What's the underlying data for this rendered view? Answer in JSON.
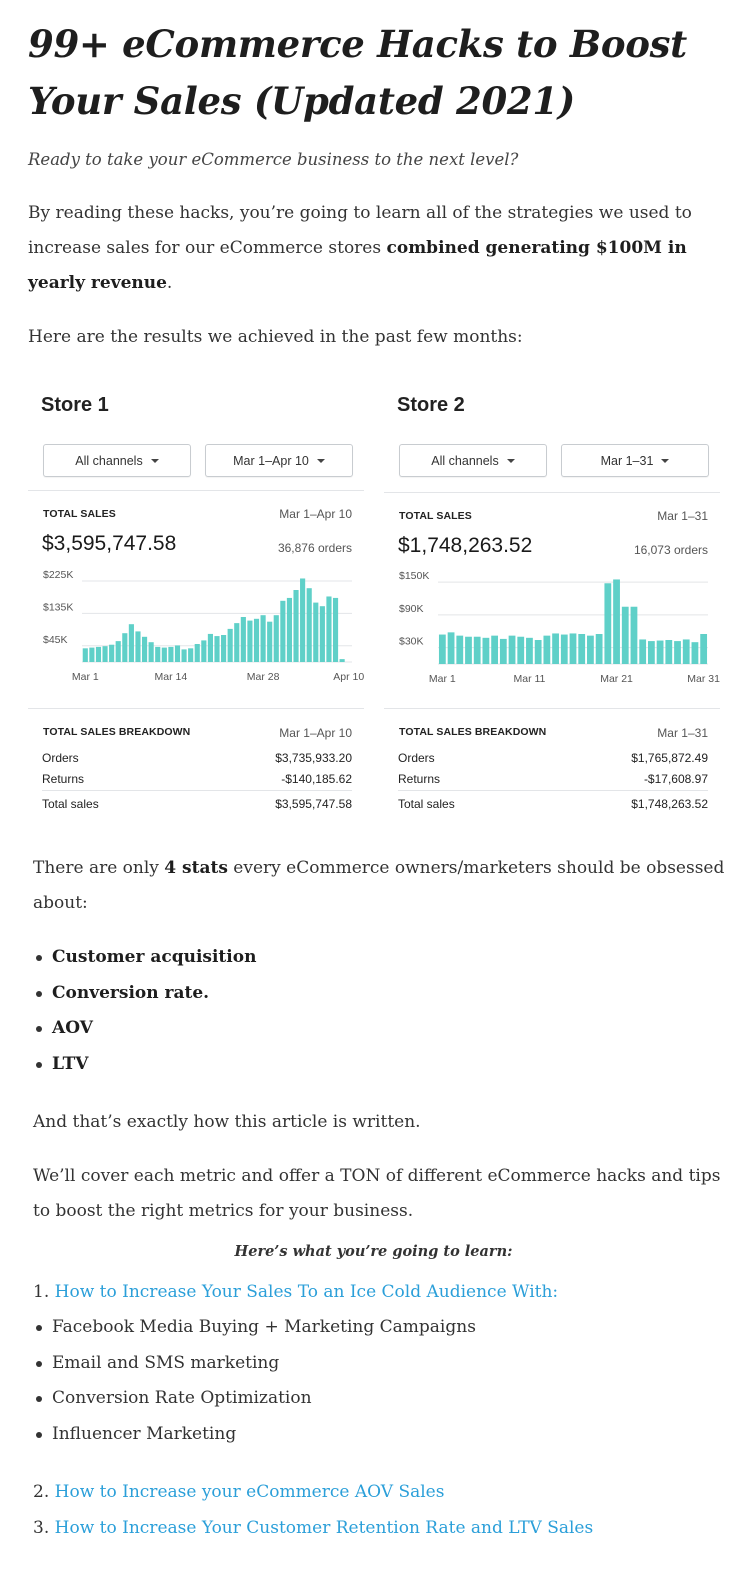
{
  "article": {
    "title": "99+ eCommerce Hacks to Boost Your Sales (Updated 2021)",
    "lead": "Ready to take your eCommerce business to the next level?",
    "intro_prefix": "By reading these hacks, you’re going to learn all of the strategies we used to increase sales for our eCommerce stores ",
    "intro_bold": "combined generating $100M in yearly revenue",
    "intro_suffix": ".",
    "results_text": "Here are the results we achieved in the past few months:",
    "stats_prefix": "There are only ",
    "stats_bold": "4 stats",
    "stats_suffix": " every eCommerce owners/marketers should be obsessed about:",
    "stats_list": [
      "Customer acquisition",
      "Conversion rate.",
      "AOV",
      "LTV"
    ],
    "written_text": "And that’s exactly how this article is written.",
    "cover_text": "We’ll cover each metric and offer a TON of different eCommerce hacks and tips to boost the right metrics for your business.",
    "learn_heading": "Here’s what you’re going to learn:",
    "toc1_num": "1.",
    "toc1_link": "How to Increase Your Sales To an Ice Cold Audience With:",
    "toc1_sub": [
      "Facebook Media Buying + Marketing Campaigns",
      "Email and SMS marketing",
      "Conversion Rate Optimization",
      "Influencer Marketing"
    ],
    "toc2_num": "2.",
    "toc2_link": "How to Increase your eCommerce AOV Sales",
    "toc3_num": "3.",
    "toc3_link": "How to Increase Your Customer Retention Rate and LTV Sales"
  },
  "stores": [
    {
      "title": "Store 1",
      "channel_btn": "All channels",
      "date_btn": "Mar 1–Apr 10",
      "total_sales_label": "TOTAL SALES",
      "total_sales_range": "Mar 1–Apr 10",
      "total_sales_value": "$3,595,747.58",
      "orders_count": "36,876 orders",
      "breakdown_label": "TOTAL SALES BREAKDOWN",
      "breakdown_range": "Mar 1–Apr 10",
      "orders_label": "Orders",
      "orders_value": "$3,735,933.20",
      "returns_label": "Returns",
      "returns_value": "-$140,185.62",
      "total_label": "Total sales",
      "total_value": "$3,595,747.58"
    },
    {
      "title": "Store 2",
      "channel_btn": "All channels",
      "date_btn": "Mar 1–31",
      "total_sales_label": "TOTAL SALES",
      "total_sales_range": "Mar 1–31",
      "total_sales_value": "$1,748,263.52",
      "orders_count": "16,073 orders",
      "breakdown_label": "TOTAL SALES BREAKDOWN",
      "breakdown_range": "Mar 1–31",
      "orders_label": "Orders",
      "orders_value": "$1,765,872.49",
      "returns_label": "Returns",
      "returns_value": "-$17,608.97",
      "total_label": "Total sales",
      "total_value": "$1,748,263.52"
    }
  ],
  "chart_data": [
    {
      "type": "bar",
      "yticks": [
        "$225K",
        "$135K",
        "$45K"
      ],
      "ytick_values": [
        225000,
        135000,
        45000
      ],
      "ylim": [
        0,
        250000
      ],
      "xticks": [
        "Mar 1",
        "Mar 14",
        "Mar 28",
        "Apr 10"
      ],
      "xtick_index": [
        0,
        13,
        27,
        40
      ],
      "color": "#5fd0c8",
      "values": [
        38000,
        40000,
        42000,
        44000,
        48000,
        58000,
        80000,
        105000,
        85000,
        70000,
        55000,
        42000,
        40000,
        42000,
        46000,
        35000,
        38000,
        50000,
        60000,
        78000,
        72000,
        75000,
        92000,
        108000,
        125000,
        115000,
        120000,
        130000,
        112000,
        130000,
        170000,
        178000,
        200000,
        232000,
        205000,
        165000,
        155000,
        182000,
        178000,
        8000,
        0
      ]
    },
    {
      "type": "bar",
      "yticks": [
        "$150K",
        "$90K",
        "$30K"
      ],
      "ytick_values": [
        150000,
        90000,
        30000
      ],
      "ylim": [
        0,
        165000
      ],
      "xticks": [
        "Mar 1",
        "Mar 11",
        "Mar 21",
        "Mar 31"
      ],
      "xtick_index": [
        0,
        10,
        20,
        30
      ],
      "color": "#5fd0c8",
      "values": [
        54000,
        58000,
        52000,
        50000,
        50000,
        48000,
        52000,
        46000,
        52000,
        50000,
        48000,
        44000,
        52000,
        56000,
        54000,
        56000,
        55000,
        52000,
        55000,
        148000,
        155000,
        105000,
        105000,
        45000,
        42000,
        43000,
        44000,
        42000,
        45000,
        40000,
        55000
      ]
    }
  ]
}
